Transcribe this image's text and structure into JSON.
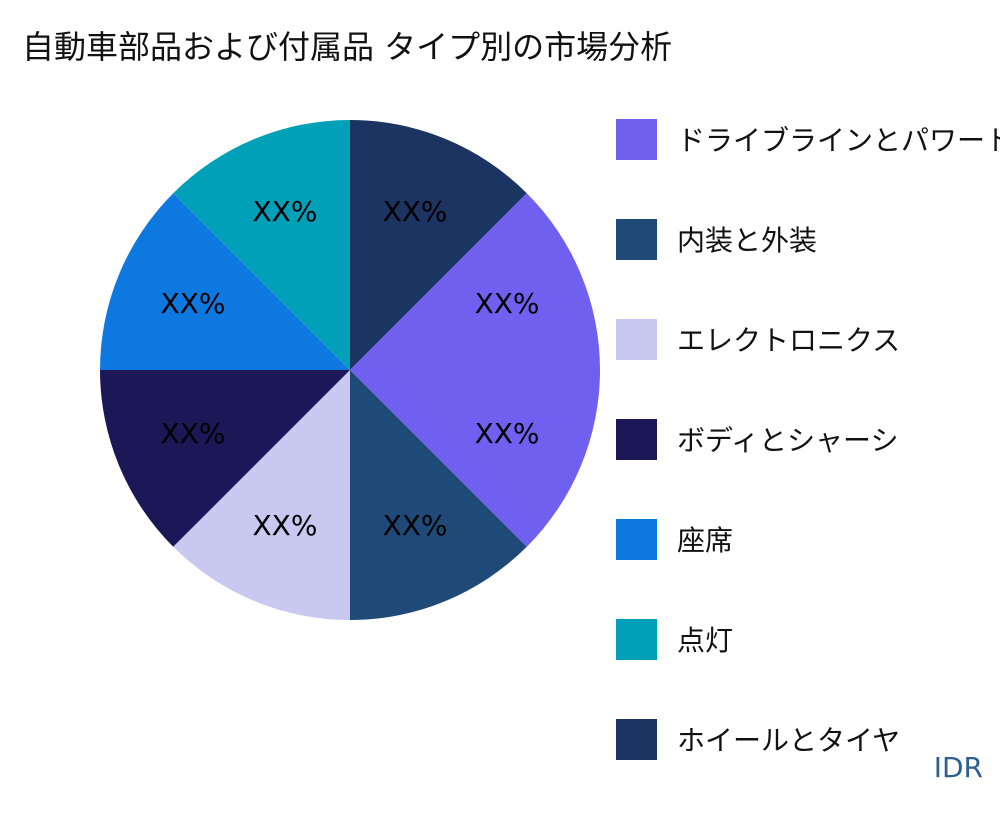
{
  "title": "自動車部品および付属品 タイプ別の市場分析",
  "watermark": "IDR",
  "chart_data": {
    "type": "pie",
    "title": "自動車部品および付属品 タイプ別の市場分析",
    "start_angle_deg": 0,
    "direction": "clockwise",
    "legend_position": "right",
    "slices": [
      {
        "name": "ホイールとタイヤ",
        "value": 12.5,
        "label": "XX%",
        "color": "#1c3461"
      },
      {
        "name": "ドライブラインとパワートレイン",
        "value": 25,
        "label": "XX%",
        "label2": "XX%",
        "color": "#7060f0"
      },
      {
        "name": "内装と外装",
        "value": 12.5,
        "label": "XX%",
        "color": "#1f4a78"
      },
      {
        "name": "エレクトロニクス",
        "value": 12.5,
        "label": "XX%",
        "color": "#c8c8f0"
      },
      {
        "name": "ボディとシャーシ",
        "value": 12.5,
        "label": "XX%",
        "color": "#1c1858"
      },
      {
        "name": "座席",
        "value": 12.5,
        "label": "XX%",
        "color": "#0c78e0"
      },
      {
        "name": "点灯",
        "value": 12.5,
        "label": "XX%",
        "color": "#00a0b8"
      }
    ],
    "legend": [
      {
        "label": "ドライブラインとパワートレイン",
        "color": "#7060f0"
      },
      {
        "label": "内装と外装",
        "color": "#1f4a78"
      },
      {
        "label": "エレクトロニクス",
        "color": "#c8c8f0"
      },
      {
        "label": "ボディとシャーシ",
        "color": "#1c1858"
      },
      {
        "label": "座席",
        "color": "#0c78e0"
      },
      {
        "label": "点灯",
        "color": "#00a0b8"
      },
      {
        "label": "ホイールとタイヤ",
        "color": "#1c3461"
      }
    ]
  }
}
